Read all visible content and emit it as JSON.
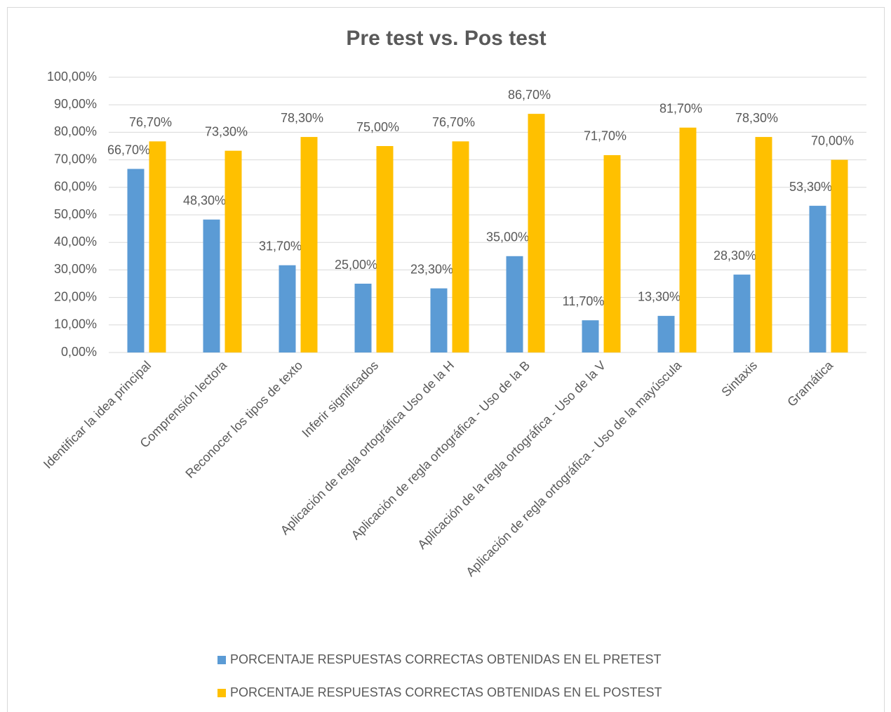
{
  "chart_data": {
    "type": "bar",
    "title": "Pre test vs. Pos test",
    "categories": [
      "Identificar la idea principal",
      "Comprensión lectora",
      "Reconocer los tipos de texto",
      "Inferir significados",
      "Aplicación de regla ortográfica Uso de la H",
      "Aplicación de regla ortográfica - Uso de la B",
      "Aplicación de la regla ortográfica - Uso de la V",
      "Aplicación de regla ortográfica - Uso de la mayúscula",
      "Sintaxis",
      "Gramática"
    ],
    "series": [
      {
        "name": "PORCENTAJE RESPUESTAS CORRECTAS OBTENIDAS EN EL PRETEST",
        "color": "#5b9bd5",
        "values": [
          66.7,
          48.3,
          31.7,
          25,
          23.3,
          35,
          11.7,
          13.3,
          28.3,
          53.3
        ],
        "value_labels": [
          "66,70%",
          "48,30%",
          "31,70%",
          "25,00%",
          "23,30%",
          "35,00%",
          "11,70%",
          "13,30%",
          "28,30%",
          "53,30%"
        ]
      },
      {
        "name": "PORCENTAJE RESPUESTAS CORRECTAS OBTENIDAS EN EL POSTEST",
        "color": "#ffc000",
        "values": [
          76.7,
          73.3,
          78.3,
          75,
          76.7,
          86.7,
          71.7,
          81.7,
          78.3,
          70
        ],
        "value_labels": [
          "76,70%",
          "73,30%",
          "78,30%",
          "75,00%",
          "76,70%",
          "86,70%",
          "71,70%",
          "81,70%",
          "78,30%",
          "70,00%"
        ]
      }
    ],
    "ylim": [
      0,
      100
    ],
    "yticks": [
      {
        "value": 0,
        "label": "0,00%"
      },
      {
        "value": 10,
        "label": "10,00%"
      },
      {
        "value": 20,
        "label": "20,00%"
      },
      {
        "value": 30,
        "label": "30,00%"
      },
      {
        "value": 40,
        "label": "40,00%"
      },
      {
        "value": 50,
        "label": "50,00%"
      },
      {
        "value": 60,
        "label": "60,00%"
      },
      {
        "value": 70,
        "label": "70,00%"
      },
      {
        "value": 80,
        "label": "80,00%"
      },
      {
        "value": 90,
        "label": "90,00%"
      },
      {
        "value": 100,
        "label": "100,00%"
      }
    ],
    "grid": true,
    "legend": "bottom"
  }
}
